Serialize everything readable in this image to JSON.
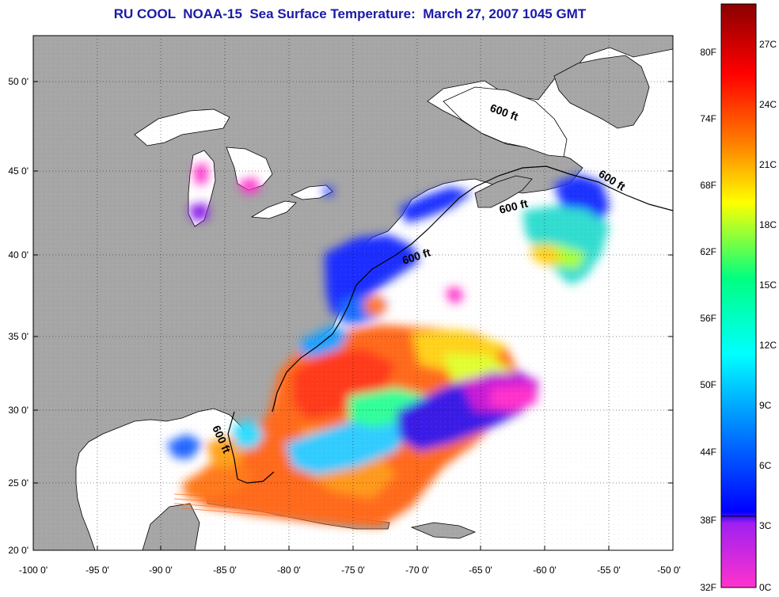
{
  "title": "RU COOL  NOAA-15  Sea Surface Temperature:  March 27, 2007 1045 GMT",
  "map": {
    "lon_range": [
      -100,
      -50
    ],
    "lat_range": [
      20,
      52.5
    ],
    "x_ticks": [
      "-100 0'",
      "-95 0'",
      "-90 0'",
      "-85 0'",
      "-80 0'",
      "-75 0'",
      "-70 0'",
      "-65 0'",
      "-60 0'",
      "-55 0'",
      "-50 0'"
    ],
    "y_ticks": [
      "20 0'",
      "25 0'",
      "30 0'",
      "35 0'",
      "40 0'",
      "45 0'",
      "50 0'"
    ],
    "grid": "dotted",
    "land_color": "#a6a6a6",
    "ocean_color": "#ffffff",
    "depth_contour_labels": [
      "600 ft",
      "600 ft",
      "600 ft",
      "600 ft",
      "600 ft"
    ]
  },
  "colorbar": {
    "fahrenheit_labels": [
      "80F",
      "74F",
      "68F",
      "62F",
      "56F",
      "50F",
      "44F",
      "38F",
      "32F"
    ],
    "celsius_labels": [
      "27C",
      "24C",
      "21C",
      "18C",
      "15C",
      "12C",
      "9C",
      "6C",
      "3C",
      "0C"
    ],
    "range_c": [
      0,
      29
    ],
    "colors": [
      "#ff33cc",
      "#a020f0",
      "#0000ff",
      "#0080ff",
      "#00ffff",
      "#00ff80",
      "#ffff00",
      "#ff8000",
      "#ff0000",
      "#8b0000"
    ]
  }
}
